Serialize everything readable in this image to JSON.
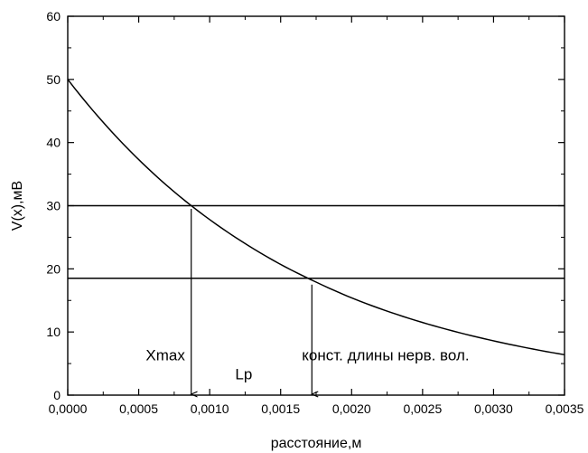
{
  "chart_data": {
    "type": "line",
    "title": "",
    "xlabel": "расстояние,м",
    "ylabel": "V(x),мВ",
    "xlim": [
      0,
      0.0035
    ],
    "ylim": [
      0,
      60
    ],
    "x_ticks": [
      0,
      0.0005,
      0.001,
      0.0015,
      0.002,
      0.0025,
      0.003,
      0.0035
    ],
    "x_tick_labels": [
      "0,0000",
      "0,0005",
      "0,0010",
      "0,0015",
      "0,0020",
      "0,0025",
      "0,0030",
      "0,0035"
    ],
    "y_ticks": [
      0,
      10,
      20,
      30,
      40,
      50,
      60
    ],
    "y_tick_labels": [
      "0",
      "10",
      "20",
      "30",
      "40",
      "50",
      "60"
    ],
    "grid": false,
    "series": [
      {
        "x": [
          0,
          0.00025,
          0.0005,
          0.00075,
          0.001,
          0.00125,
          0.0015,
          0.00175,
          0.002,
          0.0025,
          0.003,
          0.0035
        ],
        "values": [
          50,
          43.2,
          37.3,
          32.2,
          27.8,
          24.0,
          20.7,
          17.9,
          15.4,
          11.5,
          8.6,
          6.4
        ]
      }
    ],
    "hlines": [
      30,
      18.5
    ],
    "vmarkers": [
      {
        "x": 0.00087,
        "y_from": 29.5,
        "y_to": 0
      },
      {
        "x": 0.00172,
        "y_from": 17.5,
        "y_to": 0
      }
    ],
    "annotations": [
      {
        "text": "Xmax",
        "x": 0.00055,
        "y": 5.5
      },
      {
        "text": "Lp",
        "x": 0.00118,
        "y": 2.5
      },
      {
        "text": "конст. длины нерв. вол.",
        "x": 0.00165,
        "y": 5.5
      }
    ]
  }
}
